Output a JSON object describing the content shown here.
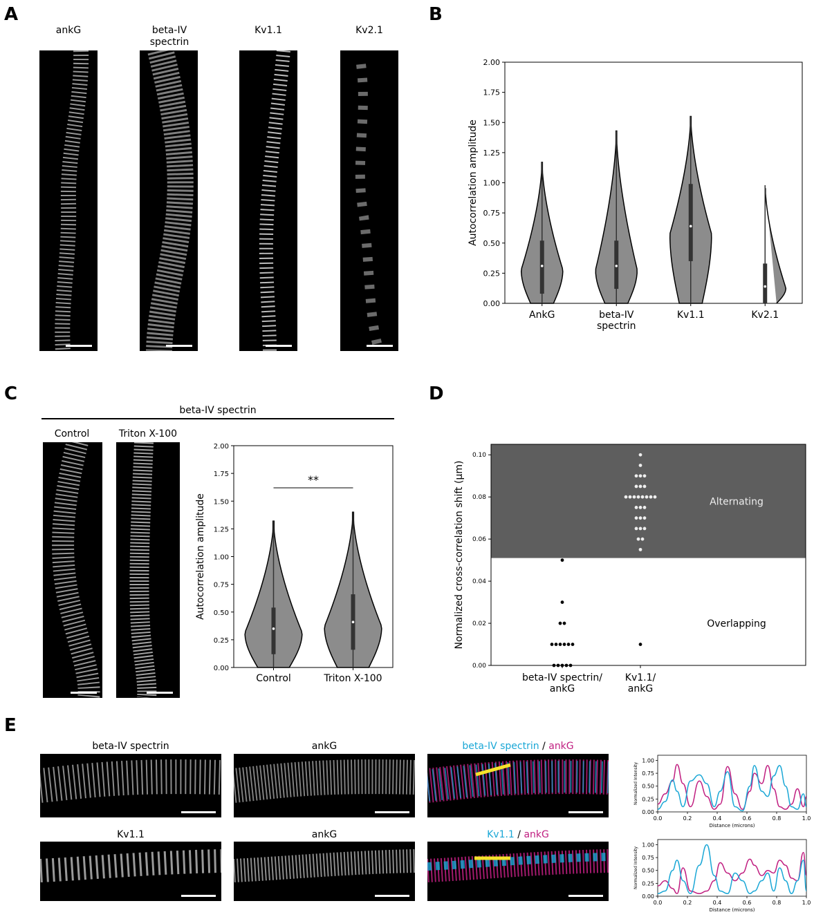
{
  "panels": {
    "A": {
      "label": "A",
      "images": [
        "ankG",
        "beta-IV\nspectrin",
        "Kv1.1",
        "Kv2.1"
      ]
    },
    "B": {
      "label": "B"
    },
    "C": {
      "label": "C",
      "group_title": "beta-IV spectrin",
      "images": [
        "Control",
        "Triton X-100"
      ],
      "significance": "**"
    },
    "D": {
      "label": "D"
    },
    "E": {
      "label": "E",
      "row1": {
        "img1": "beta-IV spectrin",
        "img2": "ankG",
        "merge_a": "beta-IV spectrin",
        "merge_sep": " / ",
        "merge_b": "ankG"
      },
      "row2": {
        "img1": "Kv1.1",
        "img2": "ankG",
        "merge_a": "Kv1.1",
        "merge_sep": " / ",
        "merge_b": "ankG"
      }
    }
  },
  "colors": {
    "cyan": "#1aa7d6",
    "magenta": "#c01e80",
    "violin": "#8c8c8c",
    "alternating_bg": "#5e5e5e",
    "yellow": "#f5e22a"
  },
  "chart_data": [
    {
      "id": "B",
      "type": "violin",
      "ylabel": "Autocorrelation amplitude",
      "ylim": [
        0,
        2.0
      ],
      "yticks": [
        "0.00",
        "0.25",
        "0.50",
        "0.75",
        "1.00",
        "1.25",
        "1.50",
        "1.75",
        "2.00"
      ],
      "categories": [
        "AnkG",
        "beta-IV\nspectrin",
        "Kv1.1",
        "Kv2.1"
      ],
      "violins": [
        {
          "min": 0.0,
          "max": 1.17,
          "q1": 0.08,
          "median": 0.31,
          "q3": 0.52
        },
        {
          "min": 0.0,
          "max": 1.43,
          "q1": 0.12,
          "median": 0.31,
          "q3": 0.52
        },
        {
          "min": 0.0,
          "max": 1.55,
          "q1": 0.35,
          "median": 0.64,
          "q3": 0.99
        },
        {
          "min": 0.0,
          "max": 0.98,
          "q1": 0.0,
          "median": 0.14,
          "q3": 0.33
        }
      ]
    },
    {
      "id": "C",
      "type": "violin",
      "ylabel": "Autocorrelation amplitude",
      "ylim": [
        0,
        2.0
      ],
      "yticks": [
        "0.00",
        "0.25",
        "0.50",
        "0.75",
        "1.00",
        "1.25",
        "1.50",
        "1.75",
        "2.00"
      ],
      "categories": [
        "Control",
        "Triton X-100"
      ],
      "violins": [
        {
          "min": 0.0,
          "max": 1.32,
          "q1": 0.12,
          "median": 0.35,
          "q3": 0.54
        },
        {
          "min": 0.0,
          "max": 1.4,
          "q1": 0.16,
          "median": 0.41,
          "q3": 0.66
        }
      ]
    },
    {
      "id": "D",
      "type": "scatter",
      "ylabel": "Normalized cross-correlation shift (μm)",
      "ylim": [
        0,
        0.105
      ],
      "yticks": [
        "0.00",
        "0.02",
        "0.04",
        "0.06",
        "0.08",
        "0.10"
      ],
      "categories": [
        "beta-IV spectrin/\nankG",
        "Kv1.1/\nankG"
      ],
      "regions": [
        {
          "label": "Alternating",
          "from": 0.051,
          "to": 0.105
        },
        {
          "label": "Overlapping",
          "from": 0,
          "to": 0.051
        }
      ],
      "series": [
        {
          "values": [
            0.05,
            0.03,
            0.02,
            0.02,
            0.01,
            0.01,
            0.01,
            0.01,
            0.01,
            0.01,
            0,
            0,
            0,
            0,
            0
          ]
        },
        {
          "values": [
            0.1,
            0.095,
            0.09,
            0.09,
            0.09,
            0.085,
            0.085,
            0.085,
            0.08,
            0.08,
            0.08,
            0.08,
            0.08,
            0.08,
            0.08,
            0.08,
            0.075,
            0.075,
            0.075,
            0.07,
            0.07,
            0.07,
            0.065,
            0.065,
            0.065,
            0.06,
            0.06,
            0.055,
            0.01
          ]
        }
      ]
    },
    {
      "id": "E1",
      "type": "line",
      "xlabel": "Distance (microns)",
      "ylabel": "Normalized Intensity",
      "xlim": [
        0,
        1.0
      ],
      "ylim": [
        0,
        1.1
      ],
      "xticks": [
        "0.0",
        "0.2",
        "0.4",
        "0.6",
        "0.8",
        "1.0"
      ],
      "yticks": [
        "0.00",
        "0.25",
        "0.50",
        "0.75",
        "1.00"
      ],
      "x": [
        0,
        0.05,
        0.1,
        0.13,
        0.17,
        0.22,
        0.28,
        0.33,
        0.38,
        0.42,
        0.47,
        0.52,
        0.57,
        0.62,
        0.65,
        0.7,
        0.74,
        0.78,
        0.82,
        0.86,
        0.9,
        0.94,
        0.98,
        1.0
      ],
      "series": [
        {
          "color": "magenta",
          "values": [
            0.15,
            0.35,
            0.6,
            0.92,
            0.55,
            0.1,
            0.6,
            0.3,
            0.05,
            0.15,
            0.88,
            0.35,
            0.05,
            0.4,
            0.75,
            0.55,
            0.9,
            0.45,
            0.1,
            0.05,
            0.15,
            0.45,
            0.1,
            0.3
          ]
        },
        {
          "color": "cyan",
          "values": [
            0.05,
            0.2,
            0.62,
            0.4,
            0.1,
            0.6,
            0.72,
            0.55,
            0.1,
            0.4,
            0.78,
            0.1,
            0.02,
            0.5,
            0.9,
            0.4,
            0.3,
            0.7,
            0.9,
            0.5,
            0.1,
            0.05,
            0.35,
            0.1
          ]
        }
      ]
    },
    {
      "id": "E2",
      "type": "line",
      "xlabel": "Distance (microns)",
      "ylabel": "Normalized Intensity",
      "xlim": [
        0,
        1.0
      ],
      "ylim": [
        0,
        1.1
      ],
      "xticks": [
        "0.0",
        "0.2",
        "0.4",
        "0.6",
        "0.8",
        "1.0"
      ],
      "yticks": [
        "0.00",
        "0.25",
        "0.50",
        "0.75",
        "1.00"
      ],
      "x": [
        0,
        0.05,
        0.1,
        0.13,
        0.17,
        0.22,
        0.28,
        0.33,
        0.38,
        0.42,
        0.47,
        0.52,
        0.57,
        0.62,
        0.65,
        0.7,
        0.74,
        0.78,
        0.82,
        0.86,
        0.9,
        0.94,
        0.98,
        1.0
      ],
      "series": [
        {
          "color": "magenta",
          "values": [
            0.2,
            0.3,
            0.15,
            0.05,
            0.55,
            0.1,
            0.05,
            0.1,
            0.3,
            0.65,
            0.45,
            0.3,
            0.45,
            0.72,
            0.6,
            0.4,
            0.5,
            0.45,
            0.7,
            0.6,
            0.35,
            0.3,
            0.85,
            0.4
          ]
        },
        {
          "color": "cyan",
          "values": [
            0.05,
            0.1,
            0.5,
            0.7,
            0.3,
            0.05,
            0.6,
            1.0,
            0.4,
            0.1,
            0.05,
            0.45,
            0.3,
            0.05,
            0.1,
            0.3,
            0.45,
            0.1,
            0.55,
            0.3,
            0.05,
            0.3,
            0.7,
            0.1
          ]
        }
      ]
    }
  ]
}
